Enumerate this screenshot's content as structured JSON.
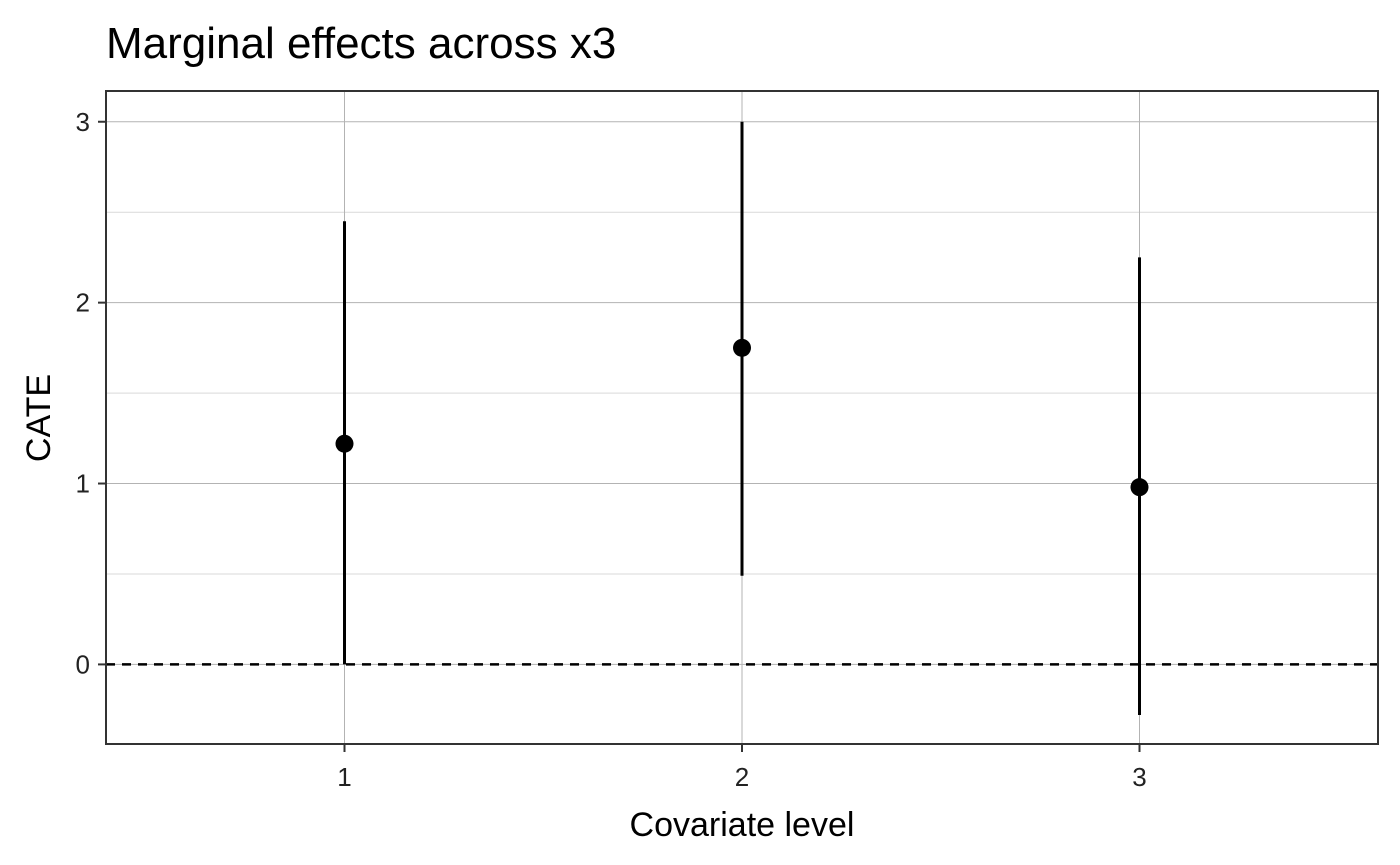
{
  "chart_data": {
    "type": "scatter",
    "title": "Marginal effects across x3",
    "xlabel": "Covariate level",
    "ylabel": "CATE",
    "x_ticks": [
      "1",
      "2",
      "3"
    ],
    "y_ticks": [
      "0",
      "1",
      "2",
      "3"
    ],
    "xlim": [
      0.4,
      3.6
    ],
    "ylim": [
      -0.44,
      3.17
    ],
    "grid": true,
    "reference_line": {
      "y": 0,
      "style": "dashed"
    },
    "points": [
      {
        "x": 1,
        "estimate": 1.22,
        "lower": 0.0,
        "upper": 2.45
      },
      {
        "x": 2,
        "estimate": 1.75,
        "lower": 0.49,
        "upper": 3.0
      },
      {
        "x": 3,
        "estimate": 0.98,
        "lower": -0.28,
        "upper": 2.25
      }
    ],
    "colors": {
      "point": "#000000",
      "grid": "#b3b3b3",
      "panel_border": "#333333"
    }
  }
}
